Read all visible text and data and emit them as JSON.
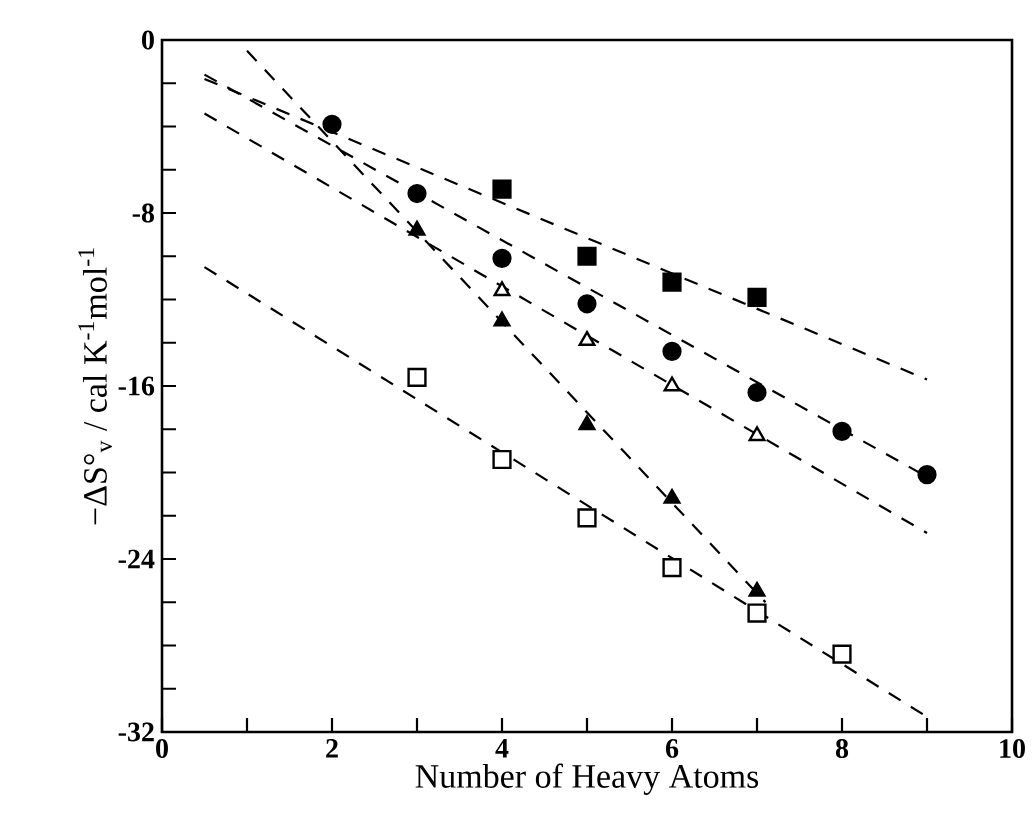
{
  "chart_data": {
    "type": "scatter",
    "xlabel": "Number of Heavy Atoms",
    "ylabel": "−ΔS°$_{v}$ / cal K$^{-1}$mol$^{-1}$",
    "xlim": [
      0,
      10
    ],
    "ylim": [
      -32,
      0
    ],
    "xticks": [
      0,
      {
        "value": 1,
        "label": null
      },
      2,
      {
        "value": 3,
        "label": null
      },
      4,
      {
        "value": 5,
        "label": null
      },
      6,
      {
        "value": 7,
        "label": null
      },
      8,
      {
        "value": 9,
        "label": null
      },
      10
    ],
    "yticks": [
      -32,
      {
        "value": -30,
        "label": null
      },
      {
        "value": -28,
        "label": null
      },
      {
        "value": -26,
        "label": null
      },
      -24,
      {
        "value": -22,
        "label": null
      },
      {
        "value": -20,
        "label": null
      },
      {
        "value": -18,
        "label": null
      },
      -16,
      {
        "value": -14,
        "label": null
      },
      {
        "value": -12,
        "label": null
      },
      {
        "value": -10,
        "label": null
      },
      -8,
      {
        "value": -6,
        "label": null
      },
      {
        "value": -4,
        "label": null
      },
      {
        "value": -2,
        "label": null
      },
      0
    ],
    "grid": false,
    "series": [
      {
        "marker": "square",
        "color": "#000000",
        "x": [
          4,
          5,
          6,
          7
        ],
        "values": [
          -6.9,
          -10.0,
          -11.2,
          -11.9
        ]
      },
      {
        "marker": "circle",
        "color": "#000000",
        "x": [
          2,
          3,
          4,
          5,
          6,
          7,
          8,
          9
        ],
        "values": [
          -3.9,
          -7.1,
          -10.1,
          -12.2,
          -14.4,
          -16.3,
          -18.1,
          -20.1
        ]
      },
      {
        "marker": "triangle",
        "color": "#ffffff",
        "x": [
          4,
          5,
          6,
          7
        ],
        "values": [
          -11.6,
          -13.9,
          -16.0,
          -18.3
        ]
      },
      {
        "marker": "triangle",
        "color": "#000000",
        "x": [
          3,
          4,
          5,
          6,
          7
        ],
        "values": [
          -8.8,
          -13.0,
          -17.8,
          -21.2,
          -25.5
        ]
      },
      {
        "marker": "square",
        "color": "#ffffff",
        "x": [
          3,
          4,
          5,
          6,
          7,
          8
        ],
        "values": [
          -15.6,
          -19.4,
          -22.1,
          -24.4,
          -26.5,
          -28.4
        ]
      },
      {
        "type": "line",
        "line_style": "dashed",
        "color": "#000000",
        "x": [
          0.5,
          9
        ],
        "values": [
          -1.8,
          -15.7
        ]
      },
      {
        "type": "line",
        "line_style": "dashed",
        "color": "#000000",
        "x": [
          0.5,
          9
        ],
        "values": [
          -1.6,
          -20.2
        ]
      },
      {
        "type": "line",
        "line_style": "dashed",
        "color": "#000000",
        "x": [
          0.5,
          9
        ],
        "values": [
          -3.4,
          -22.8
        ]
      },
      {
        "type": "line",
        "line_style": "dashed",
        "color": "#000000",
        "x": [
          1,
          7.1
        ],
        "values": [
          -0.5,
          -26.0
        ]
      },
      {
        "type": "line",
        "line_style": "dashed",
        "color": "#000000",
        "x": [
          0.5,
          9
        ],
        "values": [
          -10.5,
          -31.3
        ]
      }
    ]
  }
}
